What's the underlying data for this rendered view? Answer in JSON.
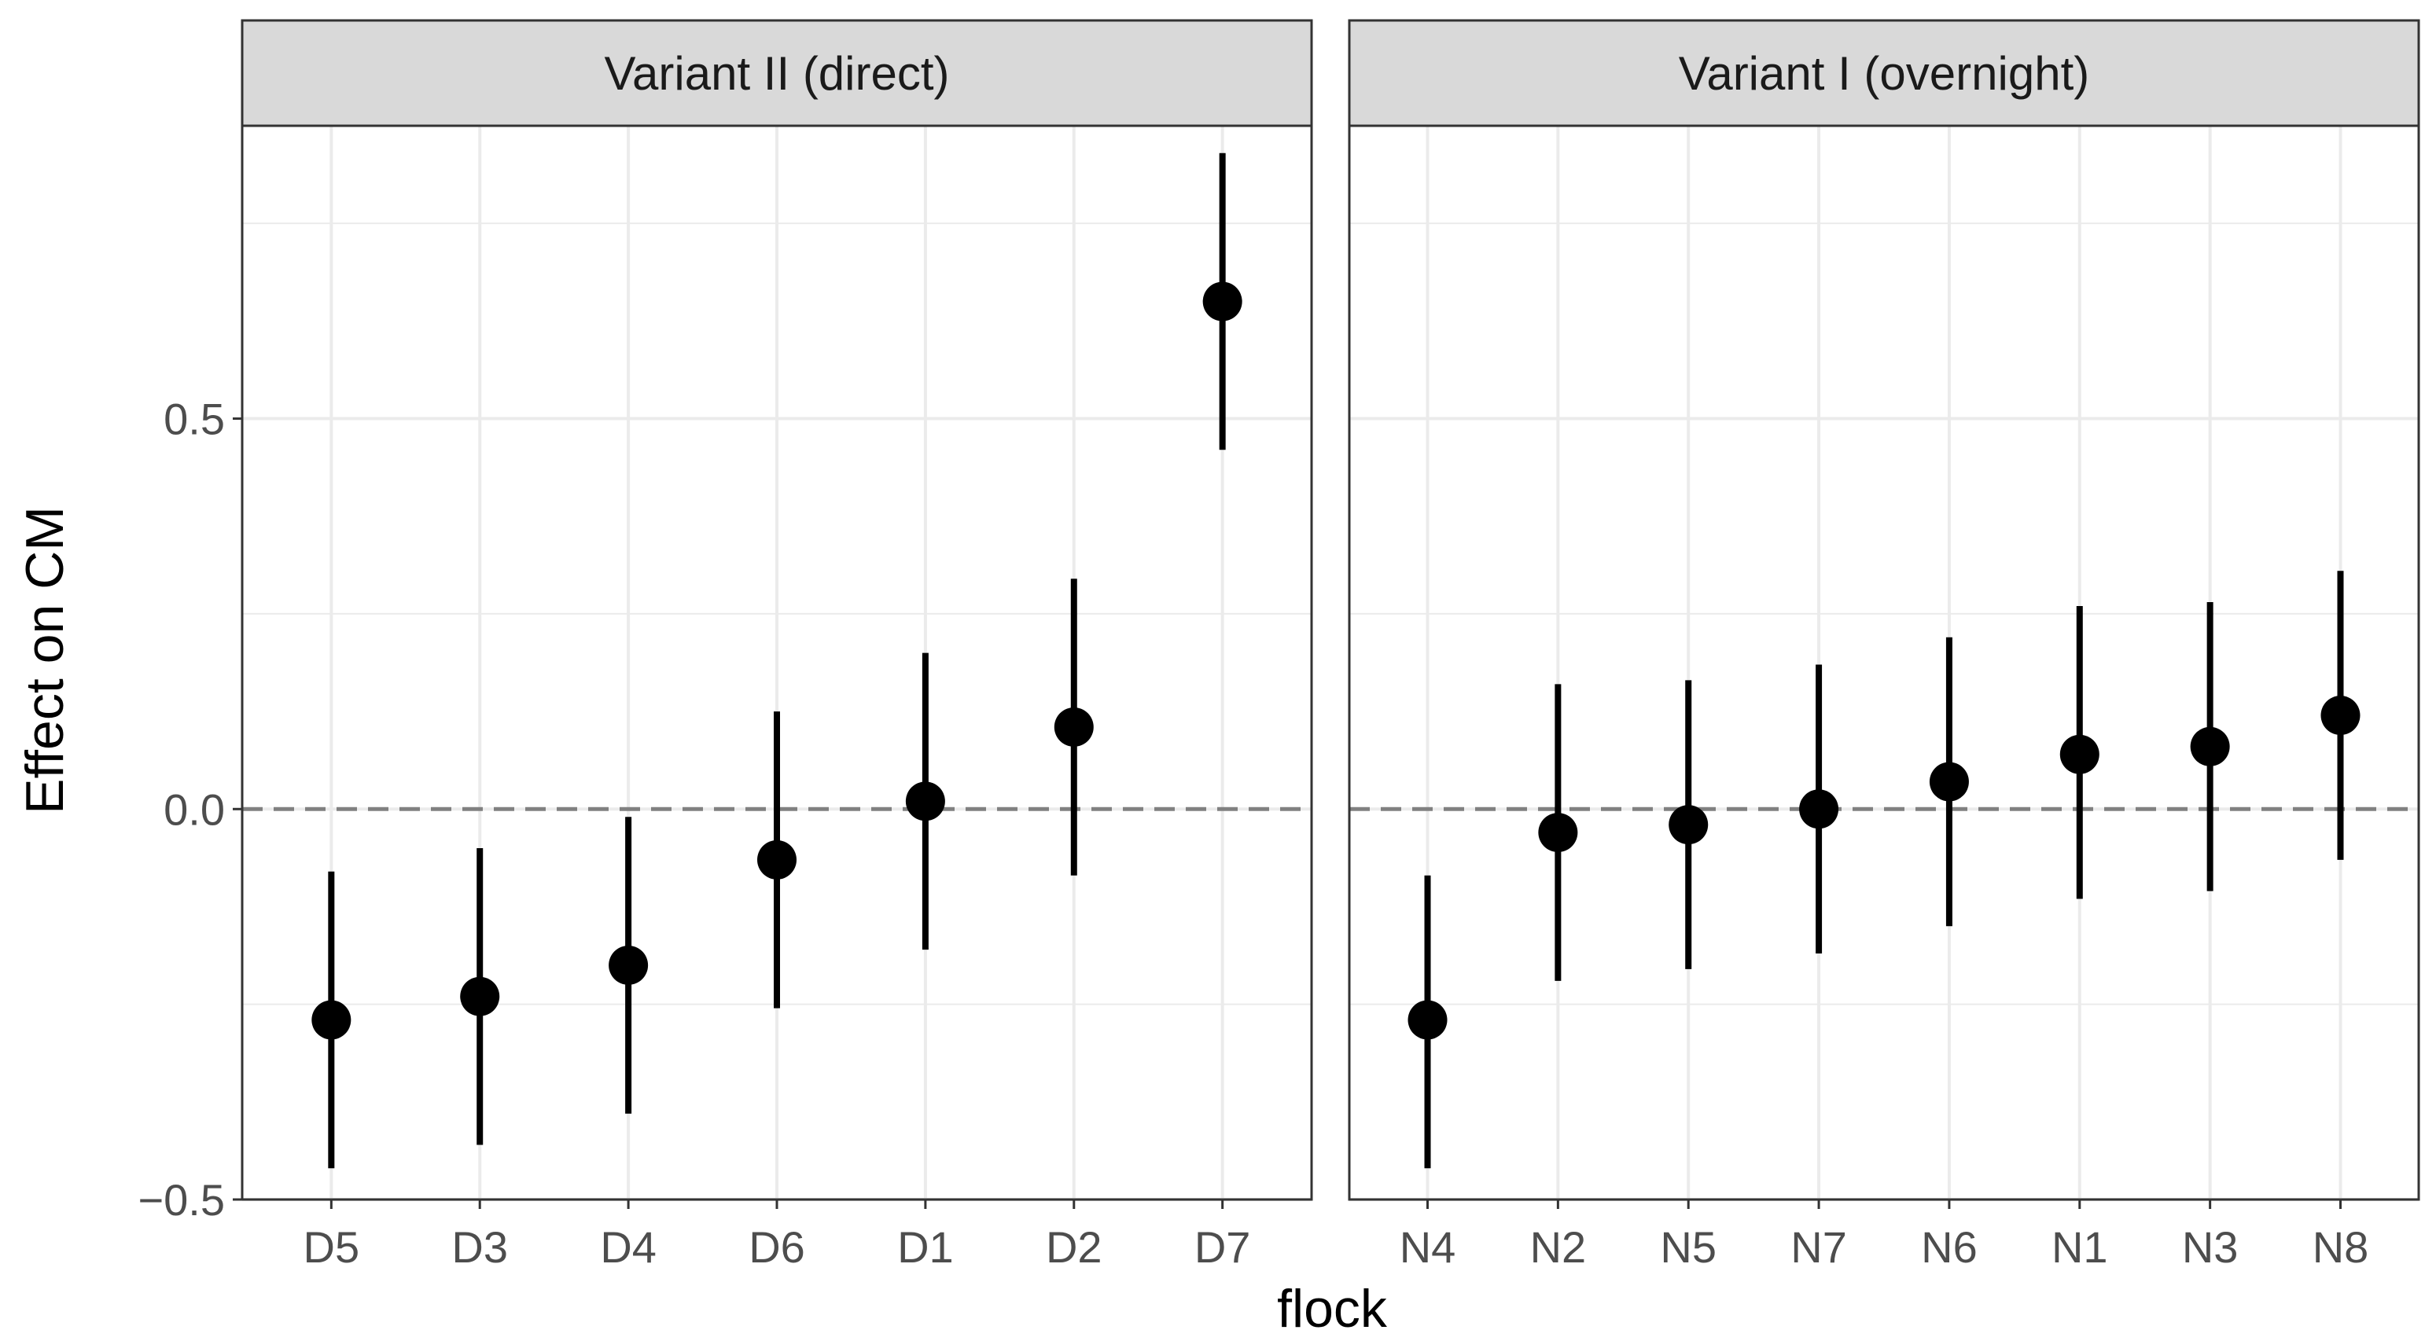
{
  "chart_data": {
    "type": "scatter",
    "subtype": "point-range (point estimate with interval)",
    "xlabel": "flock",
    "ylabel": "Effect on CM",
    "ylim": [
      -0.5,
      0.875
    ],
    "yticks": [
      -0.5,
      0.0,
      0.5
    ],
    "ytick_labels": [
      "−0.5",
      "0.0",
      "0.5"
    ],
    "grid": true,
    "reference_line": {
      "y": 0,
      "style": "dashed",
      "color": "#808080"
    },
    "colors": {
      "points": "#000000",
      "strip": "#d9d9d9",
      "grid": "#ebebeb",
      "panel_border": "#333333"
    },
    "panels": [
      {
        "title": "Variant II (direct)",
        "categories": [
          "D5",
          "D3",
          "D4",
          "D6",
          "D1",
          "D2",
          "D7"
        ],
        "estimate": [
          -0.27,
          -0.24,
          -0.2,
          -0.065,
          0.01,
          0.105,
          0.65
        ],
        "lower": [
          -0.46,
          -0.43,
          -0.39,
          -0.255,
          -0.18,
          -0.085,
          0.46
        ],
        "upper": [
          -0.08,
          -0.05,
          -0.01,
          0.125,
          0.2,
          0.295,
          0.84
        ]
      },
      {
        "title": "Variant I (overnight)",
        "categories": [
          "N4",
          "N2",
          "N5",
          "N7",
          "N6",
          "N1",
          "N3",
          "N8"
        ],
        "estimate": [
          -0.27,
          -0.03,
          -0.02,
          0.0,
          0.035,
          0.07,
          0.08,
          0.12
        ],
        "lower": [
          -0.46,
          -0.22,
          -0.205,
          -0.185,
          -0.15,
          -0.115,
          -0.105,
          -0.065
        ],
        "upper": [
          -0.085,
          0.16,
          0.165,
          0.185,
          0.22,
          0.26,
          0.265,
          0.305
        ]
      }
    ]
  }
}
